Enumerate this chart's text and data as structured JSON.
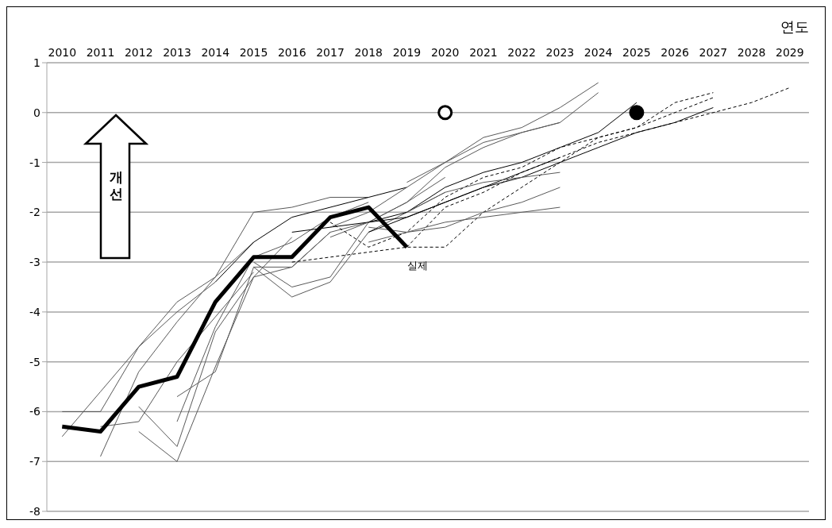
{
  "chart_data": {
    "type": "line",
    "xlabel": "연도",
    "annotations": [
      "개선"
    ],
    "xlim": [
      2009.6,
      2029.5
    ],
    "xticks": [
      2010,
      2011,
      2012,
      2013,
      2014,
      2015,
      2016,
      2017,
      2018,
      2019,
      2020,
      2021,
      2022,
      2023,
      2024,
      2025,
      2026,
      2027,
      2028,
      2029
    ],
    "ylim": [
      -8,
      1
    ],
    "yticks": [
      -8,
      -7,
      -6,
      -5,
      -4,
      -3,
      -2,
      -1,
      0,
      1
    ],
    "grid": "y",
    "series": [
      {
        "color": "#595959",
        "x": [
          2010,
          2011,
          2012,
          2013,
          2014
        ],
        "values": [
          -6.0,
          -6.0,
          -4.7,
          -3.8,
          -3.3
        ]
      },
      {
        "color": "#595959",
        "x": [
          2010,
          2011,
          2012,
          2013,
          2014
        ],
        "values": [
          -6.5,
          -5.6,
          -4.7,
          -4.0,
          -3.4
        ]
      },
      {
        "color": "#595959",
        "x": [
          2011,
          2012,
          2013,
          2014,
          2015
        ],
        "values": [
          -6.9,
          -5.2,
          -4.2,
          -3.3,
          -2.6
        ]
      },
      {
        "color": "#595959",
        "x": [
          2011,
          2012,
          2013,
          2014,
          2015
        ],
        "values": [
          -6.3,
          -6.2,
          -5.0,
          -4.1,
          -3.2
        ]
      },
      {
        "color": "#595959",
        "x": [
          2012,
          2013,
          2014,
          2015,
          2016
        ],
        "values": [
          -5.9,
          -6.7,
          -4.4,
          -3.3,
          -2.5
        ]
      },
      {
        "color": "#595959",
        "x": [
          2012,
          2013,
          2014,
          2015,
          2016,
          2017
        ],
        "values": [
          -6.4,
          -7.0,
          -5.1,
          -3.3,
          -3.1,
          -2.4
        ]
      },
      {
        "color": "#595959",
        "x": [
          2013,
          2014,
          2015,
          2016,
          2017,
          2018
        ],
        "values": [
          -5.7,
          -5.2,
          -3.1,
          -3.1,
          -2.4,
          -2.2
        ]
      },
      {
        "color": "#595959",
        "x": [
          2013,
          2014,
          2015,
          2016,
          2017,
          2018
        ],
        "values": [
          -6.2,
          -4.3,
          -2.9,
          -2.6,
          -2.1,
          -1.8
        ]
      },
      {
        "color": "#595959",
        "x": [
          2014,
          2015,
          2016,
          2017,
          2018
        ],
        "values": [
          -3.3,
          -2.0,
          -1.9,
          -1.7,
          -1.7
        ]
      },
      {
        "color": "#000000",
        "x": [
          2014,
          2015,
          2016,
          2017,
          2018,
          2019
        ],
        "values": [
          -3.4,
          -2.6,
          -2.1,
          -1.9,
          -1.7,
          -1.5
        ]
      },
      {
        "color": "#595959",
        "x": [
          2015,
          2016,
          2017,
          2018,
          2019,
          2020
        ],
        "values": [
          -3.0,
          -3.5,
          -3.3,
          -2.2,
          -1.8,
          -1.3
        ]
      },
      {
        "color": "#595959",
        "x": [
          2015,
          2016,
          2017,
          2018,
          2019,
          2020
        ],
        "values": [
          -3.1,
          -3.7,
          -3.4,
          -2.4,
          -2.0,
          -1.6
        ]
      },
      {
        "color": "#000000",
        "line_style": "dashed",
        "x": [
          2016,
          2017,
          2018,
          2019,
          2020,
          2021,
          2022,
          2023,
          2024,
          2025,
          2026,
          2027
        ],
        "values": [
          -3.0,
          -2.9,
          -2.8,
          -2.7,
          -2.7,
          -2.0,
          -1.5,
          -1.0,
          -0.5,
          -0.3,
          0.2,
          0.4
        ]
      },
      {
        "color": "#000000",
        "x": [
          2016,
          2017,
          2018,
          2019,
          2020,
          2021,
          2022,
          2023
        ],
        "values": [
          -2.4,
          -2.3,
          -2.2,
          -2.1,
          -1.8,
          -1.5,
          -1.2,
          -0.9
        ]
      },
      {
        "color": "#595959",
        "x": [
          2017,
          2018,
          2019,
          2020,
          2021,
          2022,
          2023,
          2024
        ],
        "values": [
          -2.3,
          -2.0,
          -1.5,
          -1.0,
          -0.5,
          -0.3,
          0.1,
          0.6
        ]
      },
      {
        "color": "#595959",
        "x": [
          2017,
          2018,
          2019,
          2020,
          2021,
          2022,
          2023,
          2024
        ],
        "values": [
          -2.5,
          -2.2,
          -1.8,
          -1.1,
          -0.7,
          -0.4,
          -0.2,
          0.4
        ]
      },
      {
        "color": "#000000",
        "line_style": "dashed",
        "x": [
          2017,
          2018,
          2019,
          2020,
          2021,
          2022,
          2023,
          2024,
          2025,
          2026,
          2027
        ],
        "values": [
          -2.2,
          -2.7,
          -2.4,
          -1.7,
          -1.3,
          -1.1,
          -0.7,
          -0.5,
          -0.3,
          0.0,
          0.3
        ]
      },
      {
        "color": "#000000",
        "x": [
          2018,
          2019,
          2020,
          2021,
          2022,
          2023,
          2024,
          2025
        ],
        "values": [
          -2.2,
          -2.0,
          -1.5,
          -1.2,
          -1.0,
          -0.7,
          -0.4,
          0.2
        ]
      },
      {
        "color": "#000000",
        "x": [
          2018,
          2019,
          2020,
          2021,
          2022,
          2023,
          2024,
          2025,
          2026,
          2027
        ],
        "values": [
          -2.4,
          -2.1,
          -1.8,
          -1.5,
          -1.3,
          -1.0,
          -0.7,
          -0.4,
          -0.2,
          0.1
        ]
      },
      {
        "color": "#000000",
        "line_style": "dashed",
        "x": [
          2019,
          2020,
          2021,
          2022,
          2023,
          2024,
          2025,
          2026,
          2027,
          2028,
          2029
        ],
        "values": [
          -2.7,
          -1.9,
          -1.6,
          -1.2,
          -0.9,
          -0.6,
          -0.4,
          -0.2,
          0.0,
          0.2,
          0.5
        ]
      },
      {
        "color": "#595959",
        "x": [
          2018,
          2019,
          2020,
          2021,
          2022,
          2023
        ],
        "values": [
          -2.3,
          -2.4,
          -2.3,
          -2.0,
          -1.8,
          -1.5
        ]
      },
      {
        "color": "#595959",
        "x": [
          2018,
          2019,
          2020,
          2021,
          2022,
          2023
        ],
        "values": [
          -2.6,
          -2.4,
          -2.2,
          -2.1,
          -2.0,
          -1.9
        ]
      },
      {
        "color": "#595959",
        "x": [
          2019,
          2020,
          2021,
          2022,
          2023
        ],
        "values": [
          -2.0,
          -1.6,
          -1.4,
          -1.3,
          -1.2
        ]
      },
      {
        "color": "#595959",
        "x": [
          2019,
          2020,
          2021,
          2022,
          2023
        ],
        "values": [
          -1.4,
          -1.0,
          -0.6,
          -0.4,
          -0.2
        ]
      },
      {
        "name": "실제",
        "color": "#000000",
        "x": [
          2010,
          2011,
          2012,
          2013,
          2014,
          2015,
          2016,
          2017,
          2018,
          2019
        ],
        "values": [
          -6.3,
          -6.4,
          -5.5,
          -5.3,
          -3.8,
          -2.9,
          -2.9,
          -2.1,
          -1.9,
          -2.7
        ]
      },
      {
        "type": "scatter",
        "marker": "circle",
        "color": "#ffffff",
        "x": [
          2020
        ],
        "values": [
          0
        ]
      },
      {
        "type": "scatter",
        "marker": "circle",
        "color": "#000000",
        "x": [
          2025
        ],
        "values": [
          0
        ]
      }
    ]
  }
}
